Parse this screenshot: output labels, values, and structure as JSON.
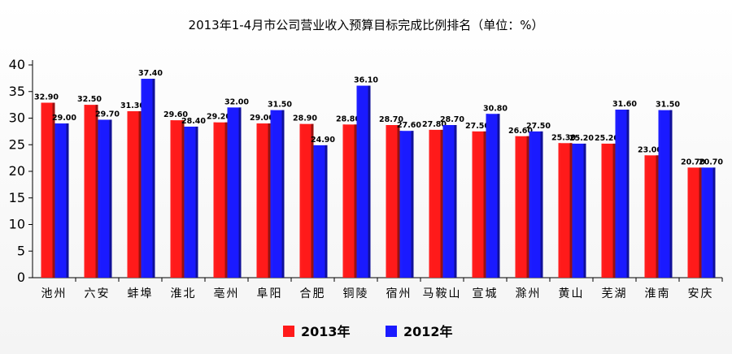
{
  "chart_data": {
    "type": "bar",
    "title": "2013年1-4月市公司营业收入预算目标完成比例排名（单位：%）",
    "xlabel": "",
    "ylabel": "",
    "ylim": [
      0,
      40
    ],
    "yticks": [
      "0",
      "5",
      "10",
      "15",
      "20",
      "25",
      "30",
      "35",
      "40"
    ],
    "grid": false,
    "legend_position": "bottom-center",
    "categories": [
      "池州",
      "六安",
      "蚌埠",
      "淮北",
      "亳州",
      "阜阳",
      "合肥",
      "铜陵",
      "宿州",
      "马鞍山",
      "宣城",
      "滁州",
      "黄山",
      "芜湖",
      "淮南",
      "安庆"
    ],
    "series": [
      {
        "name": "2013年",
        "color": "#ff1a1a",
        "values": [
          32.9,
          32.5,
          31.3,
          29.6,
          29.2,
          29.0,
          28.9,
          28.8,
          28.7,
          27.8,
          27.5,
          26.6,
          25.3,
          25.2,
          23.0,
          20.7
        ],
        "labels": [
          "32.90",
          "32.50",
          "31.30",
          "29.60",
          "29.20",
          "29.00",
          "28.90",
          "28.80",
          "28.70",
          "27.80",
          "27.50",
          "26.60",
          "25.30",
          "25.20",
          "23.00",
          "20.70"
        ]
      },
      {
        "name": "2012年",
        "color": "#1a1aff",
        "values": [
          29.0,
          29.7,
          37.4,
          28.4,
          32.0,
          31.5,
          24.9,
          36.1,
          27.6,
          28.7,
          30.8,
          27.5,
          25.2,
          31.6,
          31.5,
          20.7
        ],
        "labels": [
          "29.00",
          "29.70",
          "37.40",
          "28.40",
          "32.00",
          "31.50",
          "24.90",
          "36.10",
          "27.60",
          "28.70",
          "30.80",
          "27.50",
          "25.20",
          "31.60",
          "31.50",
          "20.70"
        ]
      }
    ]
  }
}
